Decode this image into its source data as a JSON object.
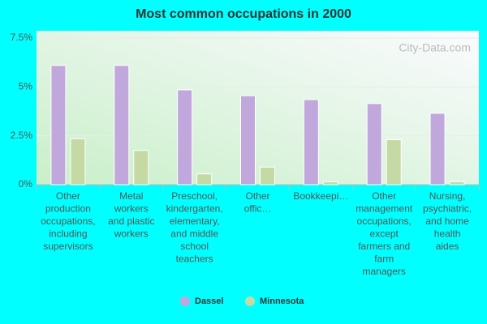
{
  "chart_data": {
    "type": "bar",
    "title": "Most common occupations in 2000",
    "watermark": "City-Data.com",
    "categories": [
      "Other production occupations, including supervisors",
      "Metal workers and plastic workers",
      "Preschool, kindergarten, elementary, and middle school teachers",
      "Other offic…",
      "Bookkeepi…",
      "Other management occupations, except farmers and farm managers",
      "Nursing, psychiatric, and home health aides"
    ],
    "series": [
      {
        "name": "Dassel",
        "color": "#c0a8dc",
        "values": [
          6.1,
          6.1,
          4.85,
          4.55,
          4.35,
          4.15,
          3.65
        ]
      },
      {
        "name": "Minnesota",
        "color": "#c5d9a5",
        "values": [
          2.35,
          1.75,
          0.55,
          0.9,
          0.15,
          2.3,
          0.15
        ]
      }
    ],
    "ylim": [
      0,
      7.5
    ],
    "yticks": [
      {
        "value": 0,
        "label": "0%"
      },
      {
        "value": 2.5,
        "label": "2.5%"
      },
      {
        "value": 5,
        "label": "5%"
      },
      {
        "value": 7.5,
        "label": "7.5%"
      }
    ],
    "grid": true,
    "legend": "bottom"
  }
}
